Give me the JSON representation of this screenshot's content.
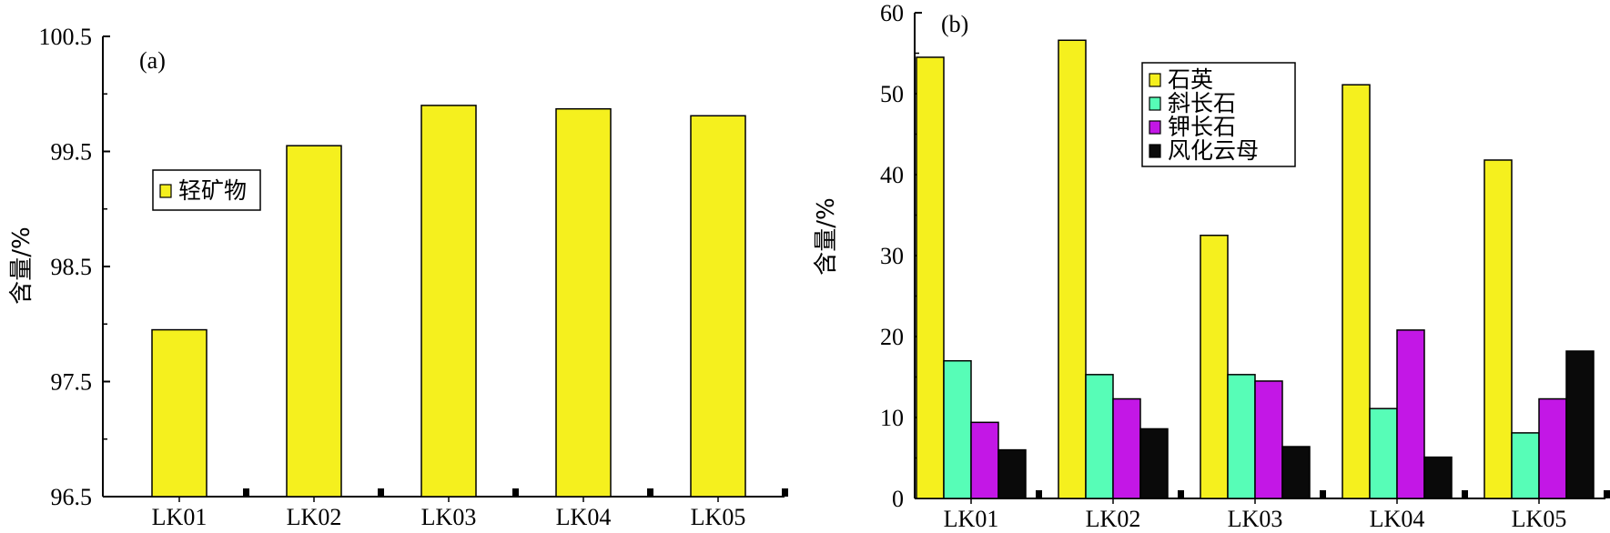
{
  "chart_data": [
    {
      "type": "bar",
      "panel_label": "(a)",
      "categories": [
        "LK01",
        "LK02",
        "LK03",
        "LK04",
        "LK05"
      ],
      "series": [
        {
          "name": "轻矿物",
          "color": "#f5f01e",
          "values": [
            97.95,
            99.55,
            99.9,
            99.87,
            99.81
          ]
        }
      ],
      "ylabel": "含量/%",
      "ylim": [
        96.5,
        100.5
      ],
      "yticks": [
        "96.5",
        "97.5",
        "98.5",
        "99.5",
        "100.5"
      ],
      "legend_position": "upper-left"
    },
    {
      "type": "bar",
      "panel_label": "(b)",
      "categories": [
        "LK01",
        "LK02",
        "LK03",
        "LK04",
        "LK05"
      ],
      "series": [
        {
          "name": "石英",
          "color": "#f5f01e",
          "values": [
            54.5,
            56.6,
            32.5,
            51.1,
            41.8
          ]
        },
        {
          "name": "斜长石",
          "color": "#57fdb7",
          "values": [
            17.0,
            15.3,
            15.3,
            11.1,
            8.1
          ]
        },
        {
          "name": "钾长石",
          "color": "#c317e6",
          "values": [
            9.4,
            12.3,
            14.5,
            20.8,
            12.3
          ]
        },
        {
          "name": "风化云母",
          "color": "#0a0a0a",
          "values": [
            6.0,
            8.6,
            6.4,
            5.1,
            18.2
          ]
        }
      ],
      "ylabel": "含量/%",
      "ylim": [
        0,
        60
      ],
      "yticks": [
        "0",
        "10",
        "20",
        "30",
        "40",
        "50",
        "60"
      ],
      "legend_position": "upper-center"
    }
  ]
}
